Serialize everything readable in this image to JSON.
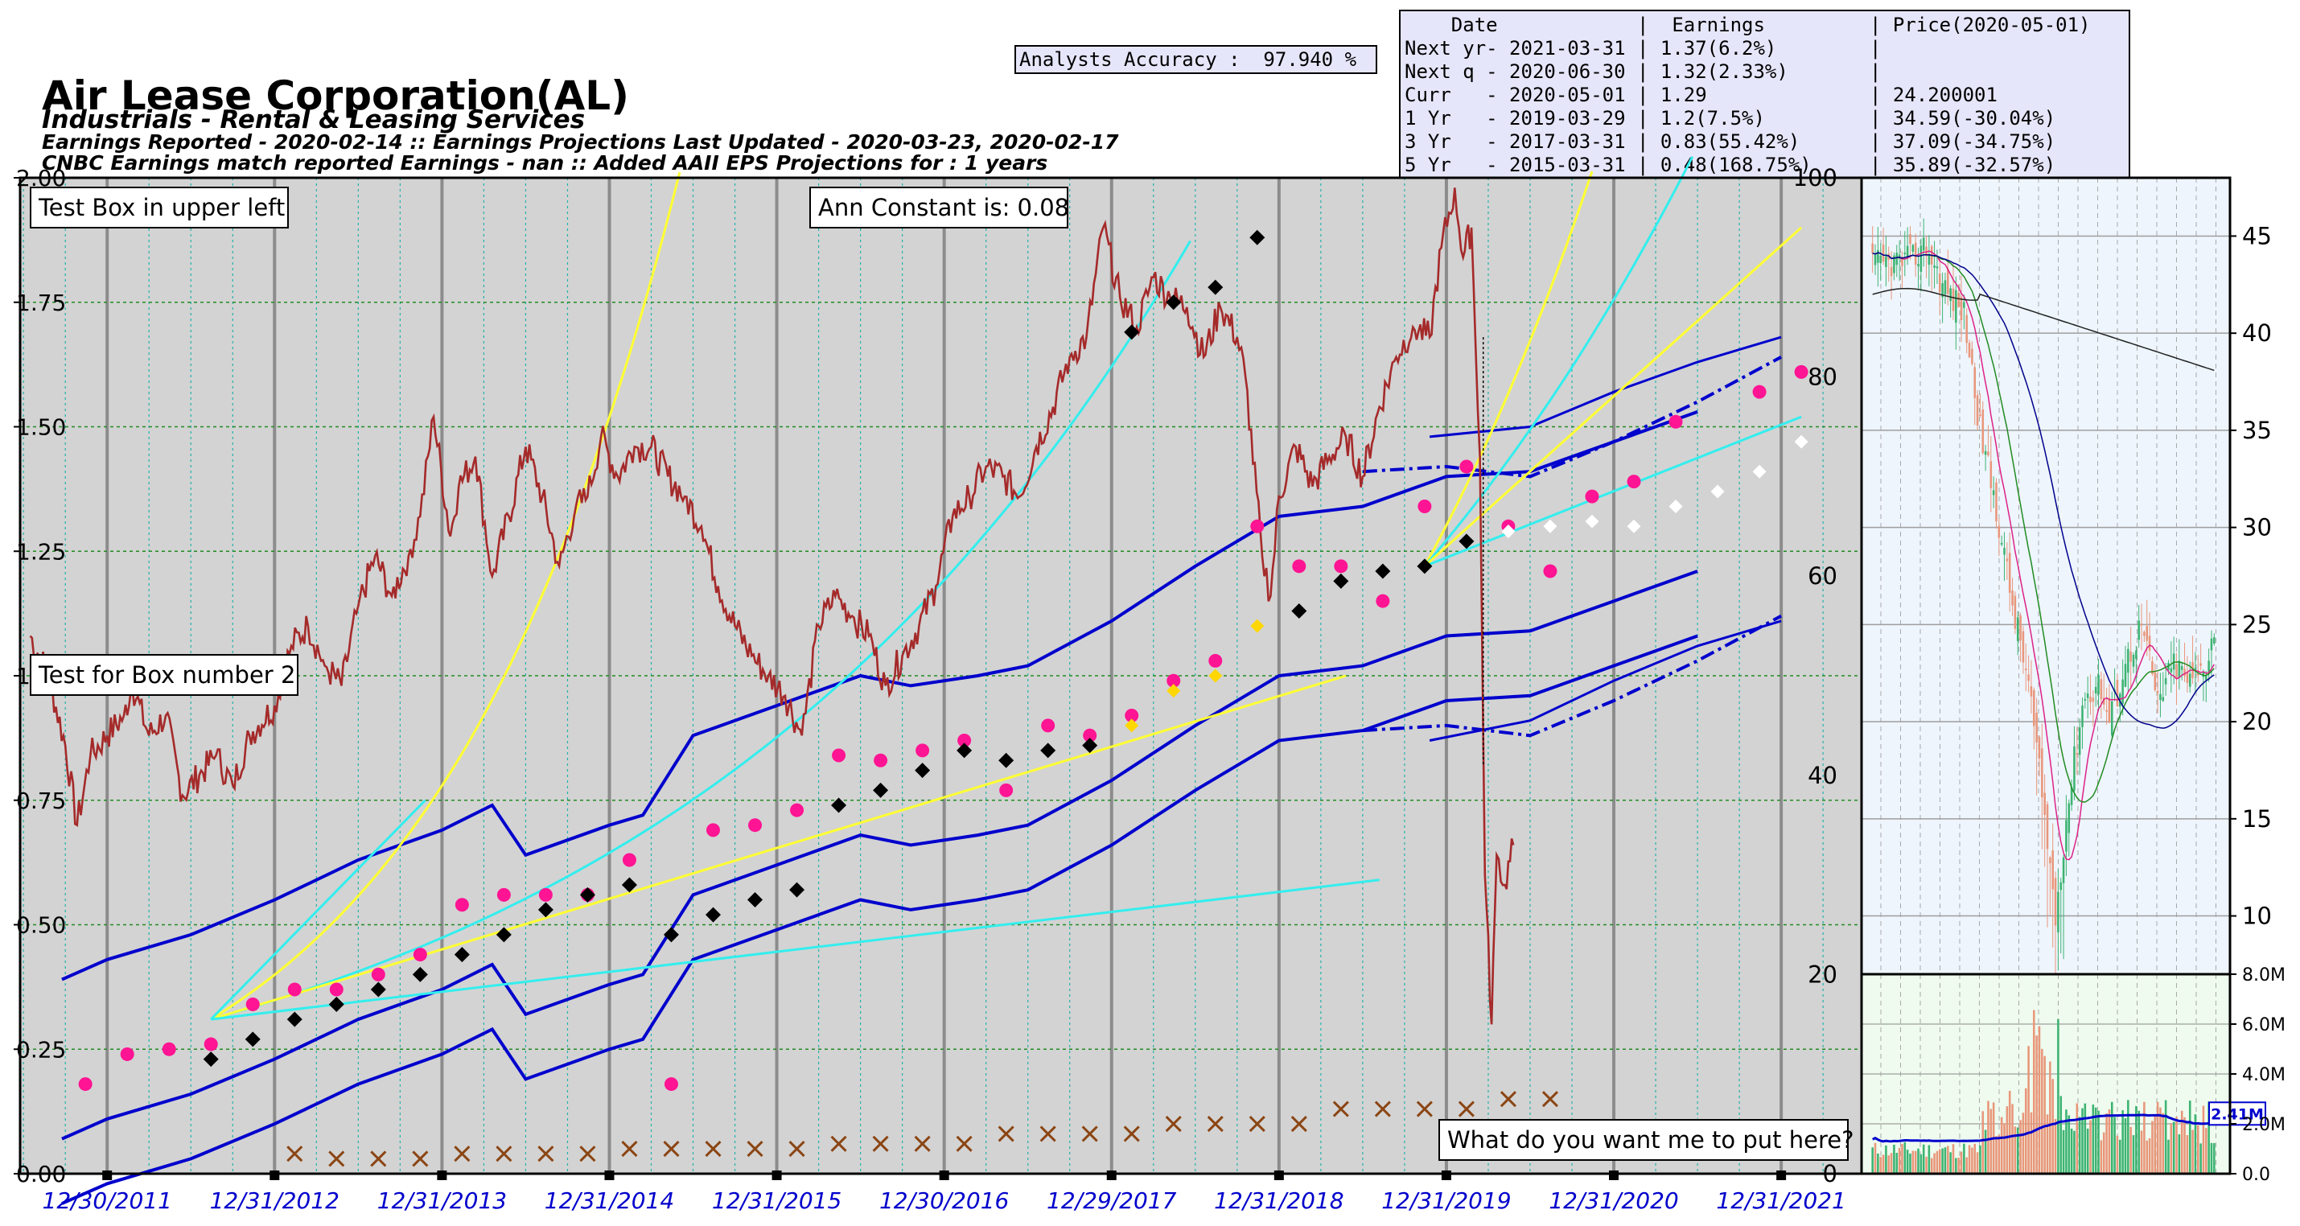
{
  "header": {
    "title": "Air Lease Corporation(AL)",
    "sector": "Industrials - Rental & Leasing Services",
    "reported": "Earnings Reported - 2020-02-14 :: Earnings Projections Last Updated - 2020-03-23, 2020-02-17",
    "cnbc": "CNBC Earnings match reported Earnings - nan :: Added AAII EPS Projections for : 1 years",
    "accuracy": "Analysts Accuracy :  97.940 %"
  },
  "summary_table": {
    "rows": [
      "    Date            |  Earnings         | Price(2020-05-01)",
      "Next yr- 2021-03-31 | 1.37(6.2%)        |",
      "Next q - 2020-06-30 | 1.32(2.33%)       |",
      "Curr   - 2020-05-01 | 1.29              | 24.200001",
      "1 Yr   - 2019-03-29 | 1.2(7.5%)         | 34.59(-30.04%)",
      "3 Yr   - 2017-03-31 | 0.83(55.42%)      | 37.09(-34.75%)",
      "5 Yr   - 2015-03-31 | 0.48(168.75%)     | 35.89(-32.57%)"
    ]
  },
  "boxes": {
    "upper_left": "Test Box in upper left",
    "ann_constant": "Ann Constant is: 0.08",
    "box2": "Test for Box number 2",
    "bottom_right": "What do you want me to put here?"
  },
  "colors": {
    "plot_bg": "#d3d3d3",
    "price": "#a52a2a",
    "channel": "#0000cd",
    "yellow": "#ffff33",
    "cyan": "#33eeee",
    "eps_pink": "#ff1493",
    "eps_black": "#000000",
    "eps_gold": "#ffd700",
    "eps_white": "#ffffff",
    "dividend": "#8b4513",
    "candle_bg": "#eef5fd",
    "volume_bg": "#eefbee",
    "candle_up": "#3cb371",
    "candle_down": "#e9967a",
    "ma_blue": "#00008b",
    "ma_pink": "#dd2288",
    "ma_green": "#228b22",
    "ma_black": "#222222",
    "xtick_color": "#0000cc"
  },
  "chart_data": [
    {
      "type": "scatter",
      "title": "Air Lease Corporation(AL)",
      "x_tick_labels": [
        "12/30/2011",
        "12/31/2012",
        "12/31/2013",
        "12/31/2014",
        "12/31/2015",
        "12/30/2016",
        "12/29/2017",
        "12/31/2018",
        "12/31/2019",
        "12/31/2020",
        "12/31/2021"
      ],
      "y_left_ticks": [
        "0.00",
        "0.25",
        "0.50",
        "0.75",
        "1.00",
        "1.25",
        "1.50",
        "1.75",
        "2.00"
      ],
      "y_right_ticks": [
        "0",
        "20",
        "40",
        "60",
        "80",
        "100"
      ],
      "xlim": [
        2011.48,
        2022.48
      ],
      "ylim_left": [
        0,
        2.0
      ],
      "ylim_right": [
        0,
        100
      ],
      "grid": true,
      "series": [
        {
          "values": [
            [
              2011.87,
              0.18
            ],
            [
              2012.12,
              0.24
            ],
            [
              2012.37,
              0.25
            ],
            [
              2012.62,
              0.26
            ],
            [
              2012.87,
              0.34
            ],
            [
              2013.12,
              0.37
            ],
            [
              2013.37,
              0.37
            ],
            [
              2013.62,
              0.4
            ],
            [
              2013.87,
              0.44
            ],
            [
              2014.12,
              0.54
            ],
            [
              2014.37,
              0.56
            ],
            [
              2014.62,
              0.56
            ],
            [
              2014.87,
              0.56
            ],
            [
              2015.12,
              0.63
            ],
            [
              2015.37,
              0.18
            ],
            [
              2015.62,
              0.69
            ],
            [
              2015.87,
              0.7
            ],
            [
              2016.12,
              0.73
            ],
            [
              2016.37,
              0.84
            ],
            [
              2016.62,
              0.83
            ],
            [
              2016.87,
              0.85
            ],
            [
              2017.12,
              0.87
            ],
            [
              2017.37,
              0.77
            ],
            [
              2017.62,
              0.9
            ],
            [
              2017.87,
              0.88
            ],
            [
              2018.12,
              0.92
            ],
            [
              2018.37,
              0.99
            ],
            [
              2018.62,
              1.03
            ],
            [
              2018.87,
              1.3
            ],
            [
              2019.12,
              1.22
            ],
            [
              2019.37,
              1.22
            ],
            [
              2019.62,
              1.15
            ],
            [
              2019.87,
              1.34
            ],
            [
              2020.12,
              1.42
            ],
            [
              2020.37,
              1.3
            ],
            [
              2020.62,
              1.21
            ],
            [
              2020.87,
              1.36
            ],
            [
              2021.12,
              1.39
            ],
            [
              2021.37,
              1.51
            ],
            [
              2021.87,
              1.57
            ],
            [
              2022.12,
              1.61
            ]
          ]
        },
        {
          "values": [
            [
              2012.62,
              0.23
            ],
            [
              2012.87,
              0.27
            ],
            [
              2013.12,
              0.31
            ],
            [
              2013.37,
              0.34
            ],
            [
              2013.62,
              0.37
            ],
            [
              2013.87,
              0.4
            ],
            [
              2014.12,
              0.44
            ],
            [
              2014.37,
              0.48
            ],
            [
              2014.62,
              0.53
            ],
            [
              2014.87,
              0.56
            ],
            [
              2015.12,
              0.58
            ],
            [
              2015.37,
              0.48
            ],
            [
              2015.62,
              0.52
            ],
            [
              2015.87,
              0.55
            ],
            [
              2016.12,
              0.57
            ],
            [
              2016.37,
              0.74
            ],
            [
              2016.62,
              0.77
            ],
            [
              2016.87,
              0.81
            ],
            [
              2017.12,
              0.85
            ],
            [
              2017.37,
              0.83
            ],
            [
              2017.62,
              0.85
            ],
            [
              2017.87,
              0.86
            ],
            [
              2018.12,
              1.69
            ],
            [
              2018.37,
              1.75
            ],
            [
              2018.62,
              1.78
            ],
            [
              2018.87,
              1.88
            ],
            [
              2019.12,
              1.13
            ],
            [
              2019.37,
              1.19
            ],
            [
              2019.62,
              1.21
            ],
            [
              2019.87,
              1.22
            ],
            [
              2020.12,
              1.27
            ]
          ]
        },
        {
          "values": [
            [
              2018.12,
              0.9
            ],
            [
              2018.37,
              0.97
            ],
            [
              2018.62,
              1.0
            ],
            [
              2018.87,
              1.1
            ]
          ]
        },
        {
          "values": [
            [
              2020.37,
              1.29
            ],
            [
              2020.62,
              1.3
            ],
            [
              2020.87,
              1.31
            ],
            [
              2021.12,
              1.3
            ],
            [
              2021.37,
              1.34
            ],
            [
              2021.62,
              1.37
            ],
            [
              2021.87,
              1.41
            ],
            [
              2022.12,
              1.47
            ]
          ]
        },
        {
          "values": [
            [
              2013.12,
              0.04
            ],
            [
              2013.37,
              0.03
            ],
            [
              2013.62,
              0.03
            ],
            [
              2013.87,
              0.03
            ],
            [
              2014.12,
              0.04
            ],
            [
              2014.37,
              0.04
            ],
            [
              2014.62,
              0.04
            ],
            [
              2014.87,
              0.04
            ],
            [
              2015.12,
              0.05
            ],
            [
              2015.37,
              0.05
            ],
            [
              2015.62,
              0.05
            ],
            [
              2015.87,
              0.05
            ],
            [
              2016.12,
              0.05
            ],
            [
              2016.37,
              0.06
            ],
            [
              2016.62,
              0.06
            ],
            [
              2016.87,
              0.06
            ],
            [
              2017.12,
              0.06
            ],
            [
              2017.37,
              0.08
            ],
            [
              2017.62,
              0.08
            ],
            [
              2017.87,
              0.08
            ],
            [
              2018.12,
              0.08
            ],
            [
              2018.37,
              0.1
            ],
            [
              2018.62,
              0.1
            ],
            [
              2018.87,
              0.1
            ],
            [
              2019.12,
              0.1
            ],
            [
              2019.37,
              0.13
            ],
            [
              2019.62,
              0.13
            ],
            [
              2019.87,
              0.13
            ],
            [
              2020.12,
              0.13
            ],
            [
              2020.37,
              0.15
            ],
            [
              2020.62,
              0.15
            ]
          ]
        },
        {
          "values": [
            [
              2011.54,
              54
            ],
            [
              2011.65,
              50
            ],
            [
              2011.75,
              43
            ],
            [
              2011.82,
              35
            ],
            [
              2011.9,
              42
            ],
            [
              2012.0,
              44
            ],
            [
              2012.1,
              46
            ],
            [
              2012.15,
              49
            ],
            [
              2012.25,
              44
            ],
            [
              2012.35,
              46
            ],
            [
              2012.45,
              38
            ],
            [
              2012.55,
              40
            ],
            [
              2012.65,
              42
            ],
            [
              2012.75,
              39
            ],
            [
              2012.85,
              44
            ],
            [
              2013.0,
              47
            ],
            [
              2013.1,
              53
            ],
            [
              2013.2,
              55
            ],
            [
              2013.3,
              51
            ],
            [
              2013.4,
              49
            ],
            [
              2013.5,
              57
            ],
            [
              2013.6,
              62
            ],
            [
              2013.7,
              58
            ],
            [
              2013.8,
              62
            ],
            [
              2013.87,
              66
            ],
            [
              2013.95,
              76
            ],
            [
              2014.05,
              64
            ],
            [
              2014.1,
              69
            ],
            [
              2014.2,
              72
            ],
            [
              2014.3,
              60
            ],
            [
              2014.4,
              66
            ],
            [
              2014.5,
              73
            ],
            [
              2014.6,
              68
            ],
            [
              2014.7,
              61
            ],
            [
              2014.8,
              67
            ],
            [
              2014.87,
              68
            ],
            [
              2014.95,
              74
            ],
            [
              2015.05,
              70
            ],
            [
              2015.15,
              73
            ],
            [
              2015.25,
              73
            ],
            [
              2015.35,
              70
            ],
            [
              2015.45,
              68
            ],
            [
              2015.55,
              65
            ],
            [
              2015.65,
              59
            ],
            [
              2015.75,
              55
            ],
            [
              2015.85,
              52
            ],
            [
              2015.95,
              50
            ],
            [
              2016.05,
              48
            ],
            [
              2016.15,
              44
            ],
            [
              2016.25,
              55
            ],
            [
              2016.35,
              58
            ],
            [
              2016.45,
              56
            ],
            [
              2016.55,
              54
            ],
            [
              2016.65,
              49
            ],
            [
              2016.75,
              52
            ],
            [
              2016.85,
              55
            ],
            [
              2016.95,
              59
            ],
            [
              2017.05,
              66
            ],
            [
              2017.15,
              68
            ],
            [
              2017.25,
              71
            ],
            [
              2017.35,
              70
            ],
            [
              2017.45,
              68
            ],
            [
              2017.55,
              73
            ],
            [
              2017.65,
              77
            ],
            [
              2017.75,
              82
            ],
            [
              2017.85,
              84
            ],
            [
              2017.95,
              95
            ],
            [
              2018.05,
              88
            ],
            [
              2018.15,
              85
            ],
            [
              2018.25,
              90
            ],
            [
              2018.35,
              88
            ],
            [
              2018.45,
              87
            ],
            [
              2018.55,
              82
            ],
            [
              2018.65,
              87
            ],
            [
              2018.75,
              84
            ],
            [
              2018.8,
              80
            ],
            [
              2018.9,
              62
            ],
            [
              2018.95,
              58
            ],
            [
              2019.0,
              68
            ],
            [
              2019.1,
              73
            ],
            [
              2019.2,
              69
            ],
            [
              2019.3,
              72
            ],
            [
              2019.4,
              74
            ],
            [
              2019.5,
              70
            ],
            [
              2019.6,
              77
            ],
            [
              2019.7,
              82
            ],
            [
              2019.8,
              85
            ],
            [
              2019.9,
              84
            ],
            [
              2019.97,
              93
            ],
            [
              2020.05,
              99
            ],
            [
              2020.1,
              92
            ],
            [
              2020.15,
              95
            ],
            [
              2020.2,
              72
            ],
            [
              2020.23,
              30
            ],
            [
              2020.27,
              15
            ],
            [
              2020.3,
              32
            ],
            [
              2020.35,
              29
            ],
            [
              2020.4,
              33
            ]
          ]
        }
      ]
    },
    {
      "type": "bar",
      "y_ticks": [
        "10",
        "15",
        "20",
        "25",
        "30",
        "35",
        "40",
        "45"
      ],
      "ylim": [
        7,
        48
      ]
    },
    {
      "type": "bar",
      "y_ticks": [
        "0.0",
        "2.0M",
        "4.0M",
        "6.0M",
        "8.0M"
      ],
      "ylim": [
        0,
        8
      ],
      "last_label": "2.41M"
    }
  ]
}
